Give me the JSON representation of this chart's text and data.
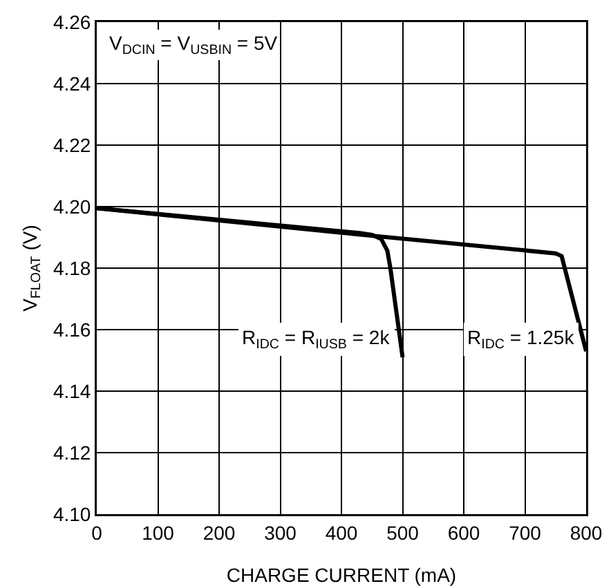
{
  "chart_data": {
    "type": "line",
    "xlabel": "CHARGE CURRENT (mA)",
    "ylabel": "V$_{FLOAT}$ (V)",
    "annotations": [
      "V$_{DCIN}$ = V$_{USBIN}$ = 5V"
    ],
    "series": [
      {
        "name": "R$_{IDC}$ = R$_{IUSB}$ = 2k",
        "color": "#000000",
        "x": [
          0,
          430,
          450,
          465,
          475,
          480,
          500
        ],
        "values": [
          4.1995,
          4.1914,
          4.1908,
          4.1895,
          4.1857,
          4.18,
          4.151
        ]
      },
      {
        "name": "R$_{IDC}$ = 1.25k",
        "color": "#000000",
        "x": [
          0,
          400,
          750,
          760,
          800
        ],
        "values": [
          4.1995,
          4.1915,
          4.1848,
          4.1839,
          4.153
        ]
      }
    ],
    "xlim": [
      0,
      800
    ],
    "xticks": [
      0,
      100,
      200,
      300,
      400,
      500,
      600,
      700,
      800
    ],
    "ylim": [
      4.1,
      4.26
    ],
    "yticks": [
      {
        "value": 4.1,
        "label": "4.10"
      },
      4.12,
      4.14,
      4.16,
      4.18,
      {
        "value": 4.2,
        "label": "4.20"
      },
      4.22,
      4.24,
      4.26
    ],
    "grid": true,
    "legend": false,
    "marker": "none",
    "line_style": "solid"
  }
}
